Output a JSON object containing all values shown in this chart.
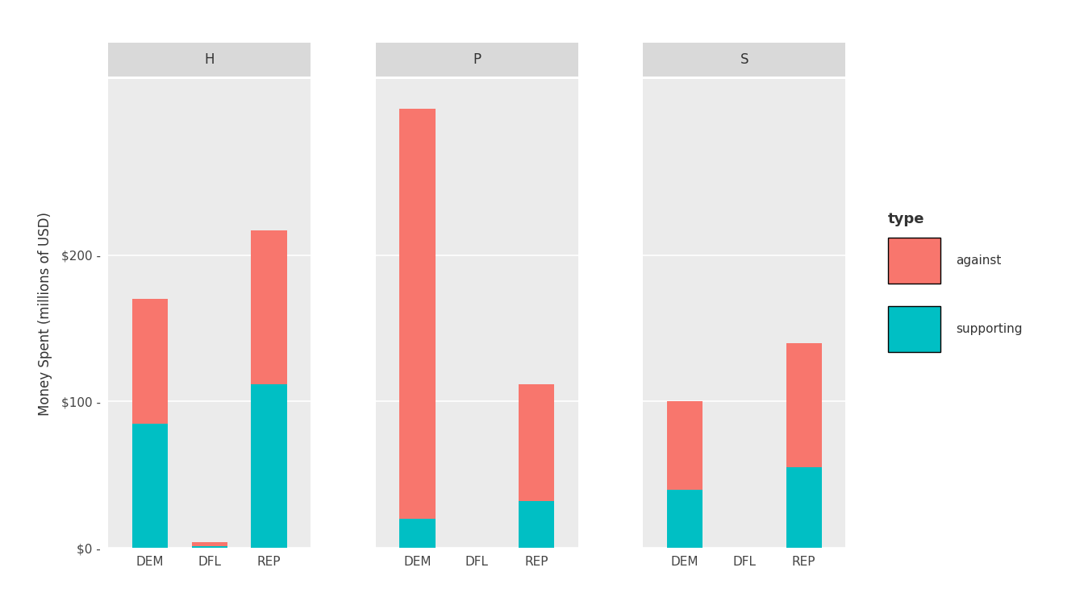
{
  "panels": [
    "H",
    "P",
    "S"
  ],
  "parties": [
    "DEM",
    "DFL",
    "REP"
  ],
  "data": {
    "H": {
      "DEM": {
        "supporting": 85,
        "against": 85
      },
      "DFL": {
        "supporting": 1.5,
        "against": 2.5
      },
      "REP": {
        "supporting": 112,
        "against": 105
      }
    },
    "P": {
      "DEM": {
        "supporting": 20,
        "against": 280
      },
      "DFL": {
        "supporting": 0,
        "against": 0
      },
      "REP": {
        "supporting": 32,
        "against": 80
      }
    },
    "S": {
      "DEM": {
        "supporting": 40,
        "against": 60
      },
      "DFL": {
        "supporting": 0,
        "against": 0
      },
      "REP": {
        "supporting": 55,
        "against": 85
      }
    }
  },
  "color_against": "#F8766D",
  "color_supporting": "#00BFC4",
  "panel_bg": "#EBEBEB",
  "fig_bg": "#FFFFFF",
  "strip_bg": "#D9D9D9",
  "grid_color": "#FFFFFF",
  "ylabel": "Money Spent (millions of USD)",
  "yticks": [
    0,
    100,
    200
  ],
  "ytick_labels": [
    "$0 -",
    "$100 -",
    "$200 -"
  ],
  "ylim_max": 320,
  "bar_width": 0.6,
  "legend_title": "type",
  "legend_labels": [
    "against",
    "supporting"
  ],
  "tick_fontsize": 11,
  "label_fontsize": 12,
  "strip_fontsize": 12
}
